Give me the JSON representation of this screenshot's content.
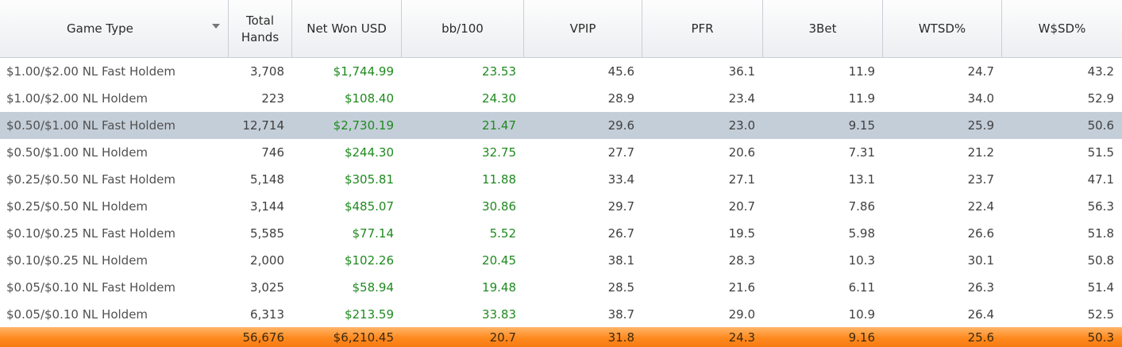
{
  "columns": [
    {
      "label": "Game Type"
    },
    {
      "label": "Total Hands"
    },
    {
      "label": "Net Won USD"
    },
    {
      "label": "bb/100"
    },
    {
      "label": "VPIP"
    },
    {
      "label": "PFR"
    },
    {
      "label": "3Bet"
    },
    {
      "label": "WTSD%"
    },
    {
      "label": "W$SD%"
    }
  ],
  "rows": [
    {
      "game": "$1.00/$2.00 NL Fast Holdem",
      "hands": "3,708",
      "net": "$1,744.99",
      "bb100": "23.53",
      "vpip": "45.6",
      "pfr": "36.1",
      "threebet": "11.9",
      "wtsd": "24.7",
      "wsd": "43.2",
      "selected": false
    },
    {
      "game": "$1.00/$2.00 NL Holdem",
      "hands": "223",
      "net": "$108.40",
      "bb100": "24.30",
      "vpip": "28.9",
      "pfr": "23.4",
      "threebet": "11.9",
      "wtsd": "34.0",
      "wsd": "52.9",
      "selected": false
    },
    {
      "game": "$0.50/$1.00 NL Fast Holdem",
      "hands": "12,714",
      "net": "$2,730.19",
      "bb100": "21.47",
      "vpip": "29.6",
      "pfr": "23.0",
      "threebet": "9.15",
      "wtsd": "25.9",
      "wsd": "50.6",
      "selected": true
    },
    {
      "game": "$0.50/$1.00 NL Holdem",
      "hands": "746",
      "net": "$244.30",
      "bb100": "32.75",
      "vpip": "27.7",
      "pfr": "20.6",
      "threebet": "7.31",
      "wtsd": "21.2",
      "wsd": "51.5",
      "selected": false
    },
    {
      "game": "$0.25/$0.50 NL Fast Holdem",
      "hands": "5,148",
      "net": "$305.81",
      "bb100": "11.88",
      "vpip": "33.4",
      "pfr": "27.1",
      "threebet": "13.1",
      "wtsd": "23.7",
      "wsd": "47.1",
      "selected": false
    },
    {
      "game": "$0.25/$0.50 NL Holdem",
      "hands": "3,144",
      "net": "$485.07",
      "bb100": "30.86",
      "vpip": "29.7",
      "pfr": "20.7",
      "threebet": "7.86",
      "wtsd": "22.4",
      "wsd": "56.3",
      "selected": false
    },
    {
      "game": "$0.10/$0.25 NL Fast Holdem",
      "hands": "5,585",
      "net": "$77.14",
      "bb100": "5.52",
      "vpip": "26.7",
      "pfr": "19.5",
      "threebet": "5.98",
      "wtsd": "26.6",
      "wsd": "51.8",
      "selected": false
    },
    {
      "game": "$0.10/$0.25 NL Holdem",
      "hands": "2,000",
      "net": "$102.26",
      "bb100": "20.45",
      "vpip": "38.1",
      "pfr": "28.3",
      "threebet": "10.3",
      "wtsd": "30.1",
      "wsd": "50.8",
      "selected": false
    },
    {
      "game": "$0.05/$0.10 NL Fast Holdem",
      "hands": "3,025",
      "net": "$58.94",
      "bb100": "19.48",
      "vpip": "28.5",
      "pfr": "21.6",
      "threebet": "6.11",
      "wtsd": "26.3",
      "wsd": "51.4",
      "selected": false
    },
    {
      "game": "$0.05/$0.10 NL Holdem",
      "hands": "6,313",
      "net": "$213.59",
      "bb100": "33.83",
      "vpip": "38.7",
      "pfr": "29.0",
      "threebet": "10.9",
      "wtsd": "26.4",
      "wsd": "52.5",
      "selected": false
    }
  ],
  "totals": {
    "game": "",
    "hands": "56,676",
    "net": "$6,210.45",
    "bb100": "20.7",
    "vpip": "31.8",
    "pfr": "24.3",
    "threebet": "9.16",
    "wtsd": "25.6",
    "wsd": "50.3"
  },
  "colors": {
    "positive": "#1f8a1f",
    "selected_row": "#c4ced9",
    "total_bar": "#ff8a1e"
  }
}
